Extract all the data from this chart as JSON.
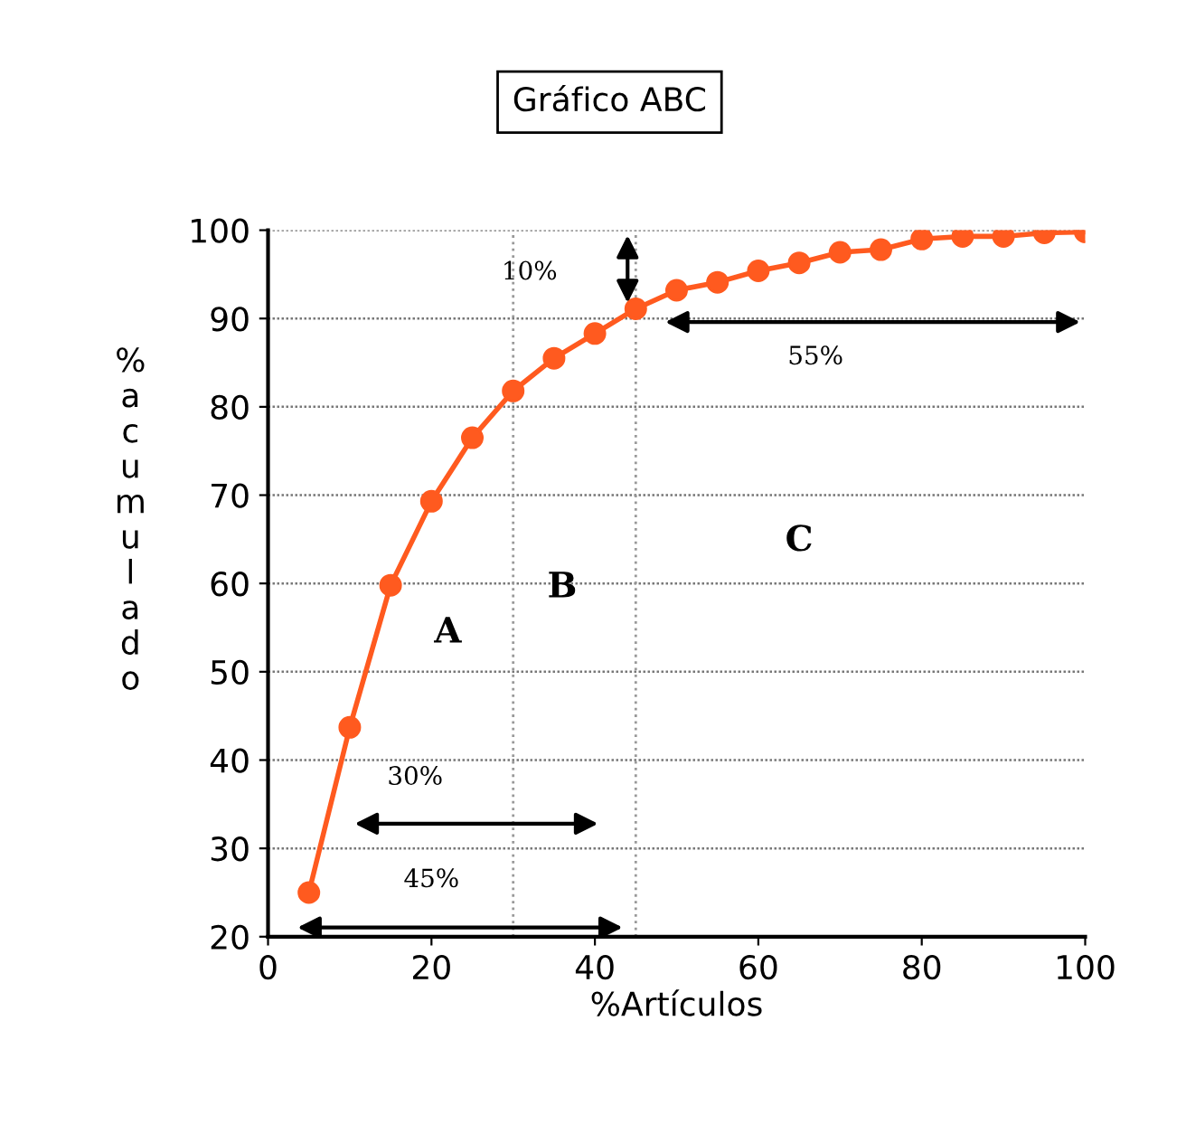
{
  "chart_data": {
    "type": "line",
    "title": "Gráfico ABC",
    "xlabel": "%Artículos",
    "ylabel": "%acumulado",
    "x": [
      5,
      10,
      15,
      20,
      25,
      30,
      35,
      40,
      45,
      50,
      55,
      60,
      65,
      70,
      75,
      80,
      85,
      90,
      95,
      100
    ],
    "series": [
      {
        "color": "#ff5a1f",
        "values": [
          25,
          43.7,
          59.8,
          69.3,
          76.5,
          81.8,
          85.5,
          88.3,
          91.1,
          93.2,
          94.1,
          95.4,
          96.3,
          97.5,
          97.8,
          99.0,
          99.3,
          99.3,
          99.7,
          99.8
        ]
      }
    ],
    "xlim": [
      0,
      100
    ],
    "xticks": [
      0,
      20,
      40,
      60,
      80,
      100
    ],
    "ylim": [
      20,
      100
    ],
    "yticks": [
      20,
      30,
      40,
      50,
      60,
      70,
      80,
      90,
      100
    ],
    "grid": "y",
    "marker": "circle",
    "line_style": "solid",
    "ref_lines": [
      {
        "axis": "x",
        "value": 30,
        "color": "#999999",
        "line_style": "dotted"
      },
      {
        "axis": "x",
        "value": 45,
        "color": "#999999",
        "line_style": "dotted"
      }
    ],
    "annotations": [
      "10%",
      "55%",
      "30%",
      "45%",
      "A",
      "B",
      "C"
    ]
  }
}
